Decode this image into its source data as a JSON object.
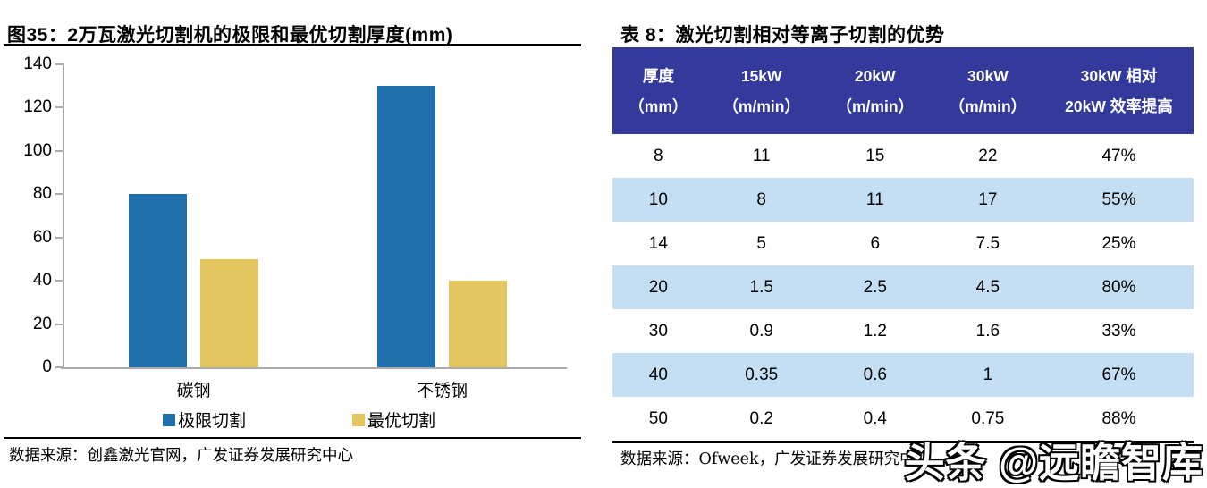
{
  "left_panel": {
    "title": "图35：2万瓦激光切割机的极限和最优切割厚度(mm)",
    "source": "数据来源：创鑫激光官网，广发证券发展研究中心"
  },
  "right_panel": {
    "title": "表 8：激光切割相对等离子切割的优势",
    "source": "数据来源：Ofweek，广发证券发展研究中心"
  },
  "watermark": "头条 @远瞻智库",
  "chart_data": {
    "type": "bar",
    "title": "2万瓦激光切割机的极限和最优切割厚度(mm)",
    "categories": [
      "碳钢",
      "不锈钢"
    ],
    "series": [
      {
        "name": "极限切割",
        "color": "#1F6FAD",
        "values": [
          80,
          130
        ]
      },
      {
        "name": "最优切割",
        "color": "#E2C75F",
        "values": [
          50,
          40
        ]
      }
    ],
    "xlabel": "",
    "ylabel": "",
    "ylim": [
      0,
      140
    ],
    "ytick_step": 20,
    "grid": false,
    "legend_position": "bottom",
    "axis_color": "#ABABAB"
  },
  "table": {
    "header": [
      [
        "厚度",
        "（mm）"
      ],
      [
        "15kW",
        "（m/min）"
      ],
      [
        "20kW",
        "（m/min）"
      ],
      [
        "30kW",
        "（m/min）"
      ],
      [
        "30kW 相对",
        "20kW 效率提高"
      ]
    ],
    "rows": [
      [
        "8",
        "11",
        "15",
        "22",
        "47%"
      ],
      [
        "10",
        "8",
        "11",
        "17",
        "55%"
      ],
      [
        "14",
        "5",
        "6",
        "7.5",
        "25%"
      ],
      [
        "20",
        "1.5",
        "2.5",
        "4.5",
        "80%"
      ],
      [
        "30",
        "0.9",
        "1.2",
        "1.6",
        "33%"
      ],
      [
        "40",
        "0.35",
        "0.6",
        "1",
        "67%"
      ],
      [
        "50",
        "0.2",
        "0.4",
        "0.75",
        "88%"
      ]
    ],
    "header_bg": "#343A9C",
    "alt_row_bg": "#C4DFF4"
  }
}
